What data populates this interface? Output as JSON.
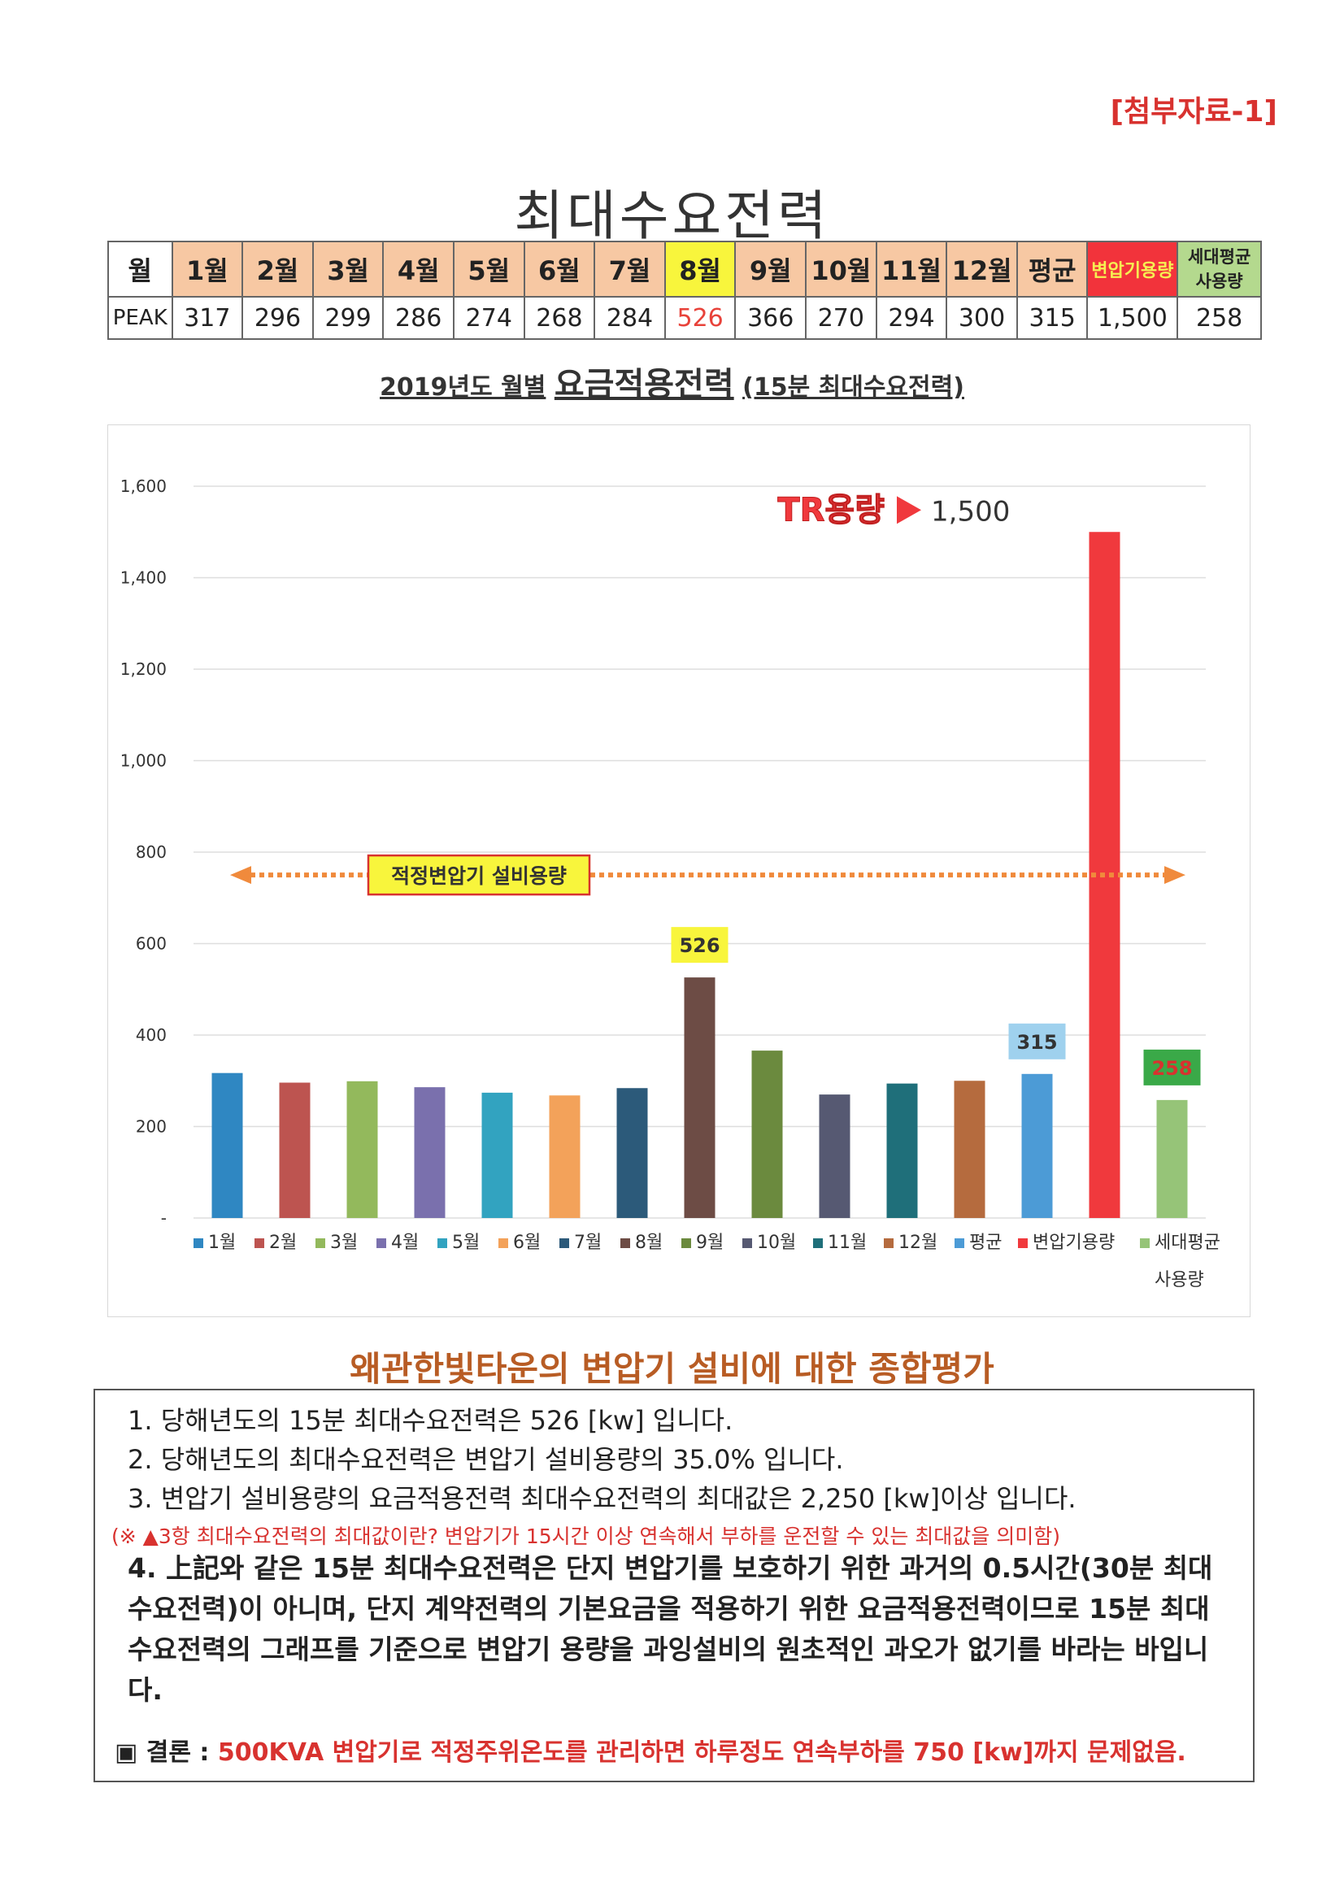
{
  "attachment_label": "[첨부자료-1]",
  "main_title": "최대수요전력",
  "table": {
    "row_header": "월",
    "row_label": "PEAK",
    "columns": [
      "1월",
      "2월",
      "3월",
      "4월",
      "5월",
      "6월",
      "7월",
      "8월",
      "9월",
      "10월",
      "11월",
      "12월",
      "평균",
      "변압기용량"
    ],
    "last_column_lines": [
      "세대평균",
      "사용량"
    ],
    "values": [
      "317",
      "296",
      "299",
      "286",
      "274",
      "268",
      "284",
      "526",
      "366",
      "270",
      "294",
      "300",
      "315",
      "1,500",
      "258"
    ]
  },
  "chart_title": {
    "prefix": "2019년도 월별",
    "main": "요금적용전력",
    "suffix": "(15분 최대수요전력)"
  },
  "chart_data": {
    "type": "bar",
    "categories": [
      "1월",
      "2월",
      "3월",
      "4월",
      "5월",
      "6월",
      "7월",
      "8월",
      "9월",
      "10월",
      "11월",
      "12월",
      "평균",
      "변압기용량",
      "세대평균 사용량"
    ],
    "values": [
      317,
      296,
      299,
      286,
      274,
      268,
      284,
      526,
      366,
      270,
      294,
      300,
      315,
      1500,
      258
    ],
    "colors": [
      "#2f87c2",
      "#bd5450",
      "#93b95c",
      "#7a70ad",
      "#32a3c0",
      "#f3a25a",
      "#2c5a7a",
      "#6d4c45",
      "#6b8a3e",
      "#565972",
      "#1f6f7a",
      "#b56b3e",
      "#4c9bd6",
      "#f0393d",
      "#96c478"
    ],
    "ylim": [
      0,
      1600
    ],
    "yticks": [
      "-",
      "200",
      "400",
      "600",
      "800",
      "1,000",
      "1,200",
      "1,400",
      "1,600"
    ],
    "grid": true,
    "legend_position": "bottom",
    "legend_line2": "사용량",
    "reference_line": {
      "value": 750,
      "label": "적정변압기 설비용량",
      "color": "#f08a3c"
    },
    "annotations": [
      {
        "category": "8월",
        "text": "526",
        "color": "#f8f53c"
      },
      {
        "category": "평균",
        "text": "315",
        "color": "#9fd1ee"
      },
      {
        "category": "세대평균 사용량",
        "text": "258",
        "color": "#3aa948"
      }
    ],
    "tr_label": "TR용량",
    "tr_value": "1,500"
  },
  "evaluation": {
    "title": "왜관한빛타운의 변압기 설비에 대한 종합평가",
    "item1": "1. 당해년도의 15분 최대수요전력은 526 [kw] 입니다.",
    "item2": "2. 당해년도의 최대수요전력은 변압기 설비용량의 35.0% 입니다.",
    "item3": "3. 변압기 설비용량의 요금적용전력 최대수요전력의 최대값은 2,250 [kw]이상 입니다.",
    "note": "(※ ▲3항 최대수요전력의 최대값이란? 변압기가 15시간 이상 연속해서 부하를 운전할 수 있는 최대값을 의미함)",
    "item4": "4. 上記와 같은 15분 최대수요전력은 단지 변압기를 보호하기 위한 과거의 0.5시간(30분 최대수요전력)이 아니며, 단지 계약전력의 기본요금을 적용하기 위한 요금적용전력이므로 15분 최대수요전력의 그래프를 기준으로 변압기 용량을 과잉설비의 원초적인 과오가 없기를 바라는 바입니다.",
    "conclusion_label": "▣ 결론 :",
    "conclusion_text": "500KVA 변압기로 적정주위온도를 관리하면 하루정도 연속부하를 750 [kw]까지 문제없음."
  }
}
